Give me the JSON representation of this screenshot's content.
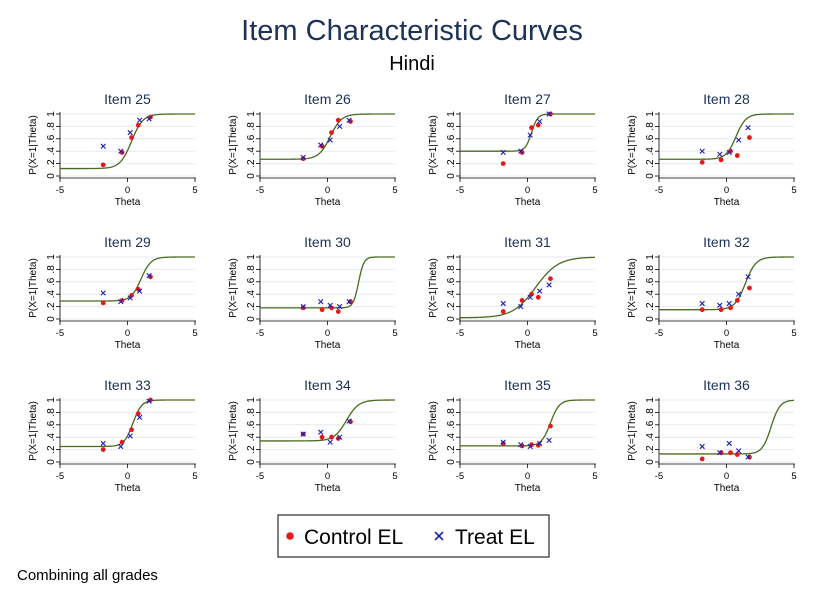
{
  "title": "Item Characteristic Curves",
  "subtitle": "Hindi",
  "note": "Combining all grades",
  "colors": {
    "title": "#1c3257",
    "curve": "#4a6a1f",
    "control": "#e31a1c",
    "treat": "#1f1fb4",
    "grid": "#e6ebef"
  },
  "legend": {
    "control_label": "Control EL",
    "treat_label": "Treat EL",
    "control_marker": "dot",
    "treat_marker": "x"
  },
  "chart_data": [
    {
      "type": "scatter",
      "title": "Item 25",
      "xlabel": "Theta",
      "ylabel": "P(X=1|Theta)",
      "xlim": [
        -5,
        5
      ],
      "ylim": [
        0,
        1
      ],
      "xticks": [
        "-5",
        "0",
        "5"
      ],
      "yticks": [
        "0",
        ".2",
        ".4",
        ".6",
        ".8",
        "1"
      ],
      "grid": true,
      "curve": {
        "lower": 0.12,
        "a": 1.4,
        "b": 0.3
      },
      "series": [
        {
          "name": "Control EL",
          "x": [
            -1.8,
            -0.4,
            0.3,
            0.8,
            1.7
          ],
          "y": [
            0.18,
            0.38,
            0.62,
            0.82,
            0.95
          ]
        },
        {
          "name": "Treat EL",
          "x": [
            -1.8,
            -0.5,
            0.2,
            0.9,
            1.6
          ],
          "y": [
            0.48,
            0.4,
            0.7,
            0.9,
            0.92
          ]
        }
      ]
    },
    {
      "type": "scatter",
      "title": "Item 26",
      "xlabel": "Theta",
      "ylabel": "P(X=1|Theta)",
      "xlim": [
        -5,
        5
      ],
      "ylim": [
        0,
        1
      ],
      "xticks": [
        "-5",
        "0",
        "5"
      ],
      "yticks": [
        "0",
        ".2",
        ".4",
        ".6",
        ".8",
        "1"
      ],
      "grid": true,
      "curve": {
        "lower": 0.27,
        "a": 1.4,
        "b": 0.2
      },
      "series": [
        {
          "name": "Control EL",
          "x": [
            -1.8,
            -0.4,
            0.3,
            0.8,
            1.7
          ],
          "y": [
            0.28,
            0.48,
            0.7,
            0.9,
            0.88
          ]
        },
        {
          "name": "Treat EL",
          "x": [
            -1.8,
            -0.5,
            0.2,
            0.9,
            1.6
          ],
          "y": [
            0.3,
            0.5,
            0.58,
            0.8,
            0.9
          ]
        }
      ]
    },
    {
      "type": "scatter",
      "title": "Item 27",
      "xlabel": "Theta",
      "ylabel": "P(X=1|Theta)",
      "xlim": [
        -5,
        5
      ],
      "ylim": [
        0,
        1
      ],
      "xticks": [
        "-5",
        "0",
        "5"
      ],
      "yticks": [
        "0",
        ".2",
        ".4",
        ".6",
        ".8",
        "1"
      ],
      "grid": true,
      "curve": {
        "lower": 0.4,
        "a": 2.6,
        "b": 0.3
      },
      "series": [
        {
          "name": "Control EL",
          "x": [
            -1.8,
            -0.4,
            0.3,
            0.8,
            1.7
          ],
          "y": [
            0.2,
            0.38,
            0.78,
            0.82,
            1.0
          ]
        },
        {
          "name": "Treat EL",
          "x": [
            -1.8,
            -0.5,
            0.2,
            0.9,
            1.6
          ],
          "y": [
            0.38,
            0.4,
            0.66,
            0.88,
            1.0
          ]
        }
      ]
    },
    {
      "type": "scatter",
      "title": "Item 28",
      "xlabel": "Theta",
      "ylabel": "P(X=1|Theta)",
      "xlim": [
        -5,
        5
      ],
      "ylim": [
        0,
        1
      ],
      "xticks": [
        "-5",
        "0",
        "5"
      ],
      "yticks": [
        "0",
        ".2",
        ".4",
        ".6",
        ".8",
        "1"
      ],
      "grid": true,
      "curve": {
        "lower": 0.27,
        "a": 1.6,
        "b": 0.7
      },
      "series": [
        {
          "name": "Control EL",
          "x": [
            -1.8,
            -0.4,
            0.3,
            0.8,
            1.7
          ],
          "y": [
            0.22,
            0.26,
            0.4,
            0.33,
            0.62
          ]
        },
        {
          "name": "Treat EL",
          "x": [
            -1.8,
            -0.5,
            0.2,
            0.9,
            1.6
          ],
          "y": [
            0.4,
            0.35,
            0.38,
            0.58,
            0.78
          ]
        }
      ]
    },
    {
      "type": "scatter",
      "title": "Item 29",
      "xlabel": "Theta",
      "ylabel": "P(X=1|Theta)",
      "xlim": [
        -5,
        5
      ],
      "ylim": [
        0,
        1
      ],
      "xticks": [
        "-5",
        "0",
        "5"
      ],
      "yticks": [
        "0",
        ".2",
        ".4",
        ".6",
        ".8",
        "1"
      ],
      "grid": true,
      "curve": {
        "lower": 0.29,
        "a": 1.6,
        "b": 1.0
      },
      "series": [
        {
          "name": "Control EL",
          "x": [
            -1.8,
            -0.4,
            0.3,
            0.8,
            1.7
          ],
          "y": [
            0.26,
            0.3,
            0.38,
            0.48,
            0.68
          ]
        },
        {
          "name": "Treat EL",
          "x": [
            -1.8,
            -0.5,
            0.2,
            0.9,
            1.6
          ],
          "y": [
            0.42,
            0.28,
            0.34,
            0.45,
            0.7
          ]
        }
      ]
    },
    {
      "type": "scatter",
      "title": "Item 30",
      "xlabel": "Theta",
      "ylabel": "P(X=1|Theta)",
      "xlim": [
        -5,
        5
      ],
      "ylim": [
        0,
        1
      ],
      "xticks": [
        "-5",
        "0",
        "5"
      ],
      "yticks": [
        "0",
        ".2",
        ".4",
        ".6",
        ".8",
        "1"
      ],
      "grid": true,
      "curve": {
        "lower": 0.18,
        "a": 3.0,
        "b": 2.3
      },
      "series": [
        {
          "name": "Control EL",
          "x": [
            -1.8,
            -0.4,
            0.3,
            0.8,
            1.7
          ],
          "y": [
            0.18,
            0.15,
            0.18,
            0.12,
            0.28
          ]
        },
        {
          "name": "Treat EL",
          "x": [
            -1.8,
            -0.5,
            0.2,
            0.9,
            1.6
          ],
          "y": [
            0.2,
            0.28,
            0.22,
            0.2,
            0.28
          ]
        }
      ]
    },
    {
      "type": "scatter",
      "title": "Item 31",
      "xlabel": "Theta",
      "ylabel": "P(X=1|Theta)",
      "xlim": [
        -5,
        5
      ],
      "ylim": [
        0,
        1
      ],
      "xticks": [
        "-5",
        "0",
        "5"
      ],
      "yticks": [
        "0",
        ".2",
        ".4",
        ".6",
        ".8",
        "1"
      ],
      "grid": true,
      "curve": {
        "lower": 0.02,
        "a": 0.7,
        "b": 0.6
      },
      "series": [
        {
          "name": "Control EL",
          "x": [
            -1.8,
            -0.4,
            0.3,
            0.8,
            1.7
          ],
          "y": [
            0.12,
            0.3,
            0.4,
            0.35,
            0.65
          ]
        },
        {
          "name": "Treat EL",
          "x": [
            -1.8,
            -0.5,
            0.2,
            0.9,
            1.6
          ],
          "y": [
            0.25,
            0.2,
            0.35,
            0.45,
            0.55
          ]
        }
      ]
    },
    {
      "type": "scatter",
      "title": "Item 32",
      "xlabel": "Theta",
      "ylabel": "P(X=1|Theta)",
      "xlim": [
        -5,
        5
      ],
      "ylim": [
        0,
        1
      ],
      "xticks": [
        "-5",
        "0",
        "5"
      ],
      "yticks": [
        "0",
        ".2",
        ".4",
        ".6",
        ".8",
        "1"
      ],
      "grid": true,
      "curve": {
        "lower": 0.15,
        "a": 1.5,
        "b": 1.4
      },
      "series": [
        {
          "name": "Control EL",
          "x": [
            -1.8,
            -0.4,
            0.3,
            0.8,
            1.7
          ],
          "y": [
            0.15,
            0.15,
            0.18,
            0.3,
            0.5
          ]
        },
        {
          "name": "Treat EL",
          "x": [
            -1.8,
            -0.5,
            0.2,
            0.9,
            1.6
          ],
          "y": [
            0.25,
            0.22,
            0.25,
            0.4,
            0.68
          ]
        }
      ]
    },
    {
      "type": "scatter",
      "title": "Item 33",
      "xlabel": "Theta",
      "ylabel": "P(X=1|Theta)",
      "xlim": [
        -5,
        5
      ],
      "ylim": [
        0,
        1
      ],
      "xticks": [
        "-5",
        "0",
        "5"
      ],
      "yticks": [
        "0",
        ".2",
        ".4",
        ".6",
        ".8",
        "1"
      ],
      "grid": true,
      "curve": {
        "lower": 0.25,
        "a": 1.8,
        "b": 0.4
      },
      "series": [
        {
          "name": "Control EL",
          "x": [
            -1.8,
            -0.4,
            0.3,
            0.8,
            1.7
          ],
          "y": [
            0.2,
            0.32,
            0.52,
            0.78,
            1.0
          ]
        },
        {
          "name": "Treat EL",
          "x": [
            -1.8,
            -0.5,
            0.2,
            0.9,
            1.6
          ],
          "y": [
            0.3,
            0.25,
            0.42,
            0.72,
            0.98
          ]
        }
      ]
    },
    {
      "type": "scatter",
      "title": "Item 34",
      "xlabel": "Theta",
      "ylabel": "P(X=1|Theta)",
      "xlim": [
        -5,
        5
      ],
      "ylim": [
        0,
        1
      ],
      "xticks": [
        "-5",
        "0",
        "5"
      ],
      "yticks": [
        "0",
        ".2",
        ".4",
        ".6",
        ".8",
        "1"
      ],
      "grid": true,
      "curve": {
        "lower": 0.34,
        "a": 1.3,
        "b": 1.4
      },
      "series": [
        {
          "name": "Control EL",
          "x": [
            -1.8,
            -0.4,
            0.3,
            0.8,
            1.7
          ],
          "y": [
            0.45,
            0.4,
            0.4,
            0.38,
            0.65
          ]
        },
        {
          "name": "Treat EL",
          "x": [
            -1.8,
            -0.5,
            0.2,
            0.9,
            1.6
          ],
          "y": [
            0.45,
            0.48,
            0.32,
            0.4,
            0.66
          ]
        }
      ]
    },
    {
      "type": "scatter",
      "title": "Item 35",
      "xlabel": "Theta",
      "ylabel": "P(X=1|Theta)",
      "xlim": [
        -5,
        5
      ],
      "ylim": [
        0,
        1
      ],
      "xticks": [
        "-5",
        "0",
        "5"
      ],
      "yticks": [
        "0",
        ".2",
        ".4",
        ".6",
        ".8",
        "1"
      ],
      "grid": true,
      "curve": {
        "lower": 0.26,
        "a": 1.8,
        "b": 1.7
      },
      "series": [
        {
          "name": "Control EL",
          "x": [
            -1.8,
            -0.4,
            0.3,
            0.8,
            1.7
          ],
          "y": [
            0.3,
            0.26,
            0.28,
            0.27,
            0.58
          ]
        },
        {
          "name": "Treat EL",
          "x": [
            -1.8,
            -0.5,
            0.2,
            0.9,
            1.6
          ],
          "y": [
            0.32,
            0.28,
            0.25,
            0.3,
            0.35
          ]
        }
      ]
    },
    {
      "type": "scatter",
      "title": "Item 36",
      "xlabel": "Theta",
      "ylabel": "P(X=1|Theta)",
      "xlim": [
        -5,
        5
      ],
      "ylim": [
        0,
        1
      ],
      "xticks": [
        "-5",
        "0",
        "5"
      ],
      "yticks": [
        "0",
        ".2",
        ".4",
        ".6",
        ".8",
        "1"
      ],
      "grid": true,
      "curve": {
        "lower": 0.13,
        "a": 1.8,
        "b": 3.3
      },
      "series": [
        {
          "name": "Control EL",
          "x": [
            -1.8,
            -0.4,
            0.3,
            0.8,
            1.7
          ],
          "y": [
            0.05,
            0.15,
            0.15,
            0.12,
            0.08
          ]
        },
        {
          "name": "Treat EL",
          "x": [
            -1.8,
            -0.5,
            0.2,
            0.9,
            1.6
          ],
          "y": [
            0.25,
            0.15,
            0.3,
            0.18,
            0.08
          ]
        }
      ]
    }
  ]
}
